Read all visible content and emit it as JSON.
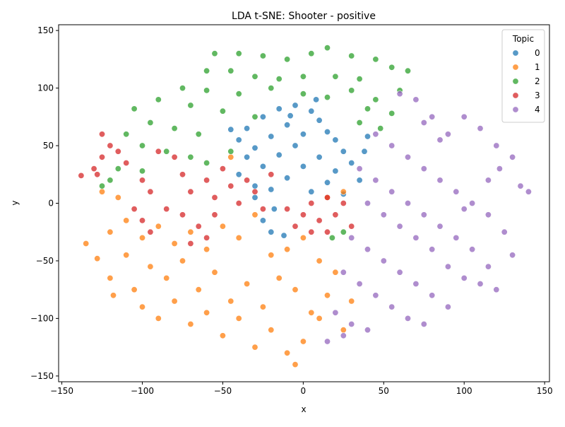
{
  "chart_data": {
    "type": "scatter",
    "title": "LDA t-SNE: Shooter - positive",
    "xlabel": "x",
    "ylabel": "y",
    "xlim": [
      -152,
      153
    ],
    "ylim": [
      -155,
      155
    ],
    "x_ticks": [
      -150,
      -100,
      -50,
      0,
      50,
      100,
      150
    ],
    "y_ticks": [
      -150,
      -100,
      -50,
      0,
      50,
      100,
      150
    ],
    "x_tick_labels": [
      "−150",
      "−100",
      "−50",
      "0",
      "50",
      "100",
      "150"
    ],
    "y_tick_labels": [
      "−150",
      "−100",
      "−50",
      "0",
      "50",
      "100",
      "150"
    ],
    "grid": false,
    "legend": {
      "title": "Topic",
      "placement": "top-right",
      "entries": [
        "0",
        "1",
        "2",
        "3",
        "4"
      ]
    },
    "series": [
      {
        "name": "0",
        "color": "#1f77b4",
        "points": [
          [
            -5,
            85
          ],
          [
            -15,
            82
          ],
          [
            5,
            80
          ],
          [
            -25,
            75
          ],
          [
            10,
            72
          ],
          [
            -35,
            65
          ],
          [
            -10,
            68
          ],
          [
            15,
            62
          ],
          [
            -40,
            55
          ],
          [
            -20,
            58
          ],
          [
            0,
            60
          ],
          [
            20,
            55
          ],
          [
            -30,
            48
          ],
          [
            -5,
            50
          ],
          [
            25,
            45
          ],
          [
            -35,
            40
          ],
          [
            -15,
            42
          ],
          [
            10,
            40
          ],
          [
            30,
            35
          ],
          [
            -25,
            32
          ],
          [
            0,
            32
          ],
          [
            20,
            28
          ],
          [
            -40,
            25
          ],
          [
            -10,
            22
          ],
          [
            15,
            18
          ],
          [
            35,
            20
          ],
          [
            -20,
            12
          ],
          [
            5,
            10
          ],
          [
            25,
            8
          ],
          [
            -30,
            5
          ],
          [
            -18,
            -5
          ],
          [
            -25,
            -15
          ],
          [
            -20,
            -25
          ],
          [
            -12,
            -28
          ],
          [
            40,
            58
          ],
          [
            38,
            45
          ],
          [
            -45,
            64
          ],
          [
            -8,
            76
          ],
          [
            8,
            90
          ],
          [
            -30,
            15
          ]
        ]
      },
      {
        "name": "1",
        "color": "#ff7f0e",
        "points": [
          [
            -125,
            10
          ],
          [
            -115,
            5
          ],
          [
            -110,
            -15
          ],
          [
            -120,
            -25
          ],
          [
            -100,
            -30
          ],
          [
            -90,
            -20
          ],
          [
            -80,
            -35
          ],
          [
            -70,
            -25
          ],
          [
            -60,
            -40
          ],
          [
            -50,
            -20
          ],
          [
            -40,
            -30
          ],
          [
            -30,
            -10
          ],
          [
            -20,
            -45
          ],
          [
            -10,
            -40
          ],
          [
            0,
            -30
          ],
          [
            10,
            -50
          ],
          [
            -110,
            -45
          ],
          [
            -95,
            -55
          ],
          [
            -85,
            -65
          ],
          [
            -75,
            -50
          ],
          [
            -65,
            -75
          ],
          [
            -55,
            -60
          ],
          [
            -45,
            -85
          ],
          [
            -35,
            -70
          ],
          [
            -25,
            -90
          ],
          [
            -15,
            -65
          ],
          [
            -5,
            -75
          ],
          [
            5,
            -95
          ],
          [
            15,
            -80
          ],
          [
            25,
            -110
          ],
          [
            -100,
            -90
          ],
          [
            -90,
            -100
          ],
          [
            -80,
            -85
          ],
          [
            -70,
            -105
          ],
          [
            -60,
            -95
          ],
          [
            -50,
            -115
          ],
          [
            -40,
            -100
          ],
          [
            -30,
            -125
          ],
          [
            -20,
            -110
          ],
          [
            -10,
            -130
          ],
          [
            0,
            -120
          ],
          [
            10,
            -100
          ],
          [
            -5,
            -140
          ],
          [
            -135,
            -35
          ],
          [
            -128,
            -48
          ],
          [
            -120,
            -65
          ],
          [
            -118,
            -80
          ],
          [
            20,
            -60
          ],
          [
            30,
            -85
          ],
          [
            25,
            10
          ],
          [
            15,
            5
          ],
          [
            -45,
            40
          ],
          [
            -105,
            -75
          ]
        ]
      },
      {
        "name": "2",
        "color": "#2ca02c",
        "points": [
          [
            -55,
            130
          ],
          [
            -40,
            130
          ],
          [
            -25,
            128
          ],
          [
            -10,
            125
          ],
          [
            5,
            130
          ],
          [
            15,
            135
          ],
          [
            30,
            128
          ],
          [
            45,
            125
          ],
          [
            -60,
            115
          ],
          [
            -45,
            115
          ],
          [
            -30,
            110
          ],
          [
            -15,
            108
          ],
          [
            0,
            110
          ],
          [
            20,
            110
          ],
          [
            35,
            108
          ],
          [
            55,
            118
          ],
          [
            65,
            115
          ],
          [
            -75,
            100
          ],
          [
            -60,
            98
          ],
          [
            -40,
            95
          ],
          [
            -20,
            100
          ],
          [
            0,
            95
          ],
          [
            15,
            92
          ],
          [
            30,
            98
          ],
          [
            45,
            90
          ],
          [
            60,
            98
          ],
          [
            -90,
            90
          ],
          [
            -70,
            85
          ],
          [
            -50,
            80
          ],
          [
            -30,
            75
          ],
          [
            40,
            82
          ],
          [
            55,
            78
          ],
          [
            -105,
            82
          ],
          [
            -95,
            70
          ],
          [
            -80,
            65
          ],
          [
            -65,
            60
          ],
          [
            -110,
            60
          ],
          [
            -100,
            50
          ],
          [
            -85,
            45
          ],
          [
            -115,
            30
          ],
          [
            -120,
            20
          ],
          [
            -125,
            15
          ],
          [
            -70,
            40
          ],
          [
            -60,
            35
          ],
          [
            -45,
            45
          ],
          [
            35,
            70
          ],
          [
            48,
            65
          ],
          [
            -100,
            28
          ],
          [
            18,
            -30
          ],
          [
            25,
            -25
          ]
        ]
      },
      {
        "name": "3",
        "color": "#d62728",
        "points": [
          [
            -125,
            60
          ],
          [
            -120,
            50
          ],
          [
            -125,
            40
          ],
          [
            -128,
            25
          ],
          [
            -138,
            24
          ],
          [
            -130,
            30
          ],
          [
            -110,
            35
          ],
          [
            -100,
            20
          ],
          [
            -95,
            10
          ],
          [
            -90,
            45
          ],
          [
            -80,
            40
          ],
          [
            -75,
            25
          ],
          [
            -70,
            10
          ],
          [
            -60,
            20
          ],
          [
            -55,
            5
          ],
          [
            -50,
            30
          ],
          [
            -45,
            15
          ],
          [
            -40,
            0
          ],
          [
            -35,
            20
          ],
          [
            -30,
            10
          ],
          [
            -25,
            -5
          ],
          [
            -85,
            -5
          ],
          [
            -75,
            -10
          ],
          [
            -65,
            -20
          ],
          [
            -55,
            -10
          ],
          [
            -100,
            -15
          ],
          [
            -95,
            -25
          ],
          [
            -105,
            -5
          ],
          [
            -10,
            -5
          ],
          [
            0,
            -10
          ],
          [
            5,
            0
          ],
          [
            10,
            -15
          ],
          [
            15,
            5
          ],
          [
            20,
            -10
          ],
          [
            25,
            0
          ],
          [
            30,
            -20
          ],
          [
            5,
            -25
          ],
          [
            -5,
            -20
          ],
          [
            15,
            -25
          ],
          [
            -70,
            -35
          ],
          [
            -60,
            -30
          ],
          [
            -115,
            45
          ],
          [
            -20,
            25
          ]
        ]
      },
      {
        "name": "4",
        "color": "#9467bd",
        "points": [
          [
            60,
            95
          ],
          [
            70,
            90
          ],
          [
            80,
            75
          ],
          [
            90,
            60
          ],
          [
            100,
            75
          ],
          [
            110,
            65
          ],
          [
            120,
            50
          ],
          [
            130,
            40
          ],
          [
            135,
            15
          ],
          [
            45,
            60
          ],
          [
            55,
            50
          ],
          [
            65,
            40
          ],
          [
            75,
            30
          ],
          [
            85,
            20
          ],
          [
            95,
            10
          ],
          [
            105,
            0
          ],
          [
            115,
            -10
          ],
          [
            125,
            -25
          ],
          [
            35,
            30
          ],
          [
            45,
            20
          ],
          [
            55,
            10
          ],
          [
            65,
            0
          ],
          [
            75,
            -10
          ],
          [
            85,
            -20
          ],
          [
            95,
            -30
          ],
          [
            105,
            -40
          ],
          [
            115,
            -55
          ],
          [
            40,
            0
          ],
          [
            50,
            -10
          ],
          [
            60,
            -20
          ],
          [
            70,
            -30
          ],
          [
            80,
            -40
          ],
          [
            90,
            -55
          ],
          [
            100,
            -65
          ],
          [
            110,
            -70
          ],
          [
            120,
            -75
          ],
          [
            30,
            -30
          ],
          [
            40,
            -40
          ],
          [
            50,
            -50
          ],
          [
            60,
            -60
          ],
          [
            70,
            -70
          ],
          [
            80,
            -80
          ],
          [
            90,
            -90
          ],
          [
            25,
            -60
          ],
          [
            35,
            -70
          ],
          [
            45,
            -80
          ],
          [
            55,
            -90
          ],
          [
            65,
            -100
          ],
          [
            75,
            -105
          ],
          [
            20,
            -95
          ],
          [
            30,
            -105
          ],
          [
            40,
            -110
          ],
          [
            15,
            -120
          ],
          [
            25,
            -115
          ],
          [
            130,
            -45
          ],
          [
            140,
            10
          ],
          [
            122,
            30
          ],
          [
            100,
            -5
          ],
          [
            85,
            55
          ],
          [
            75,
            70
          ],
          [
            115,
            20
          ]
        ]
      }
    ]
  }
}
